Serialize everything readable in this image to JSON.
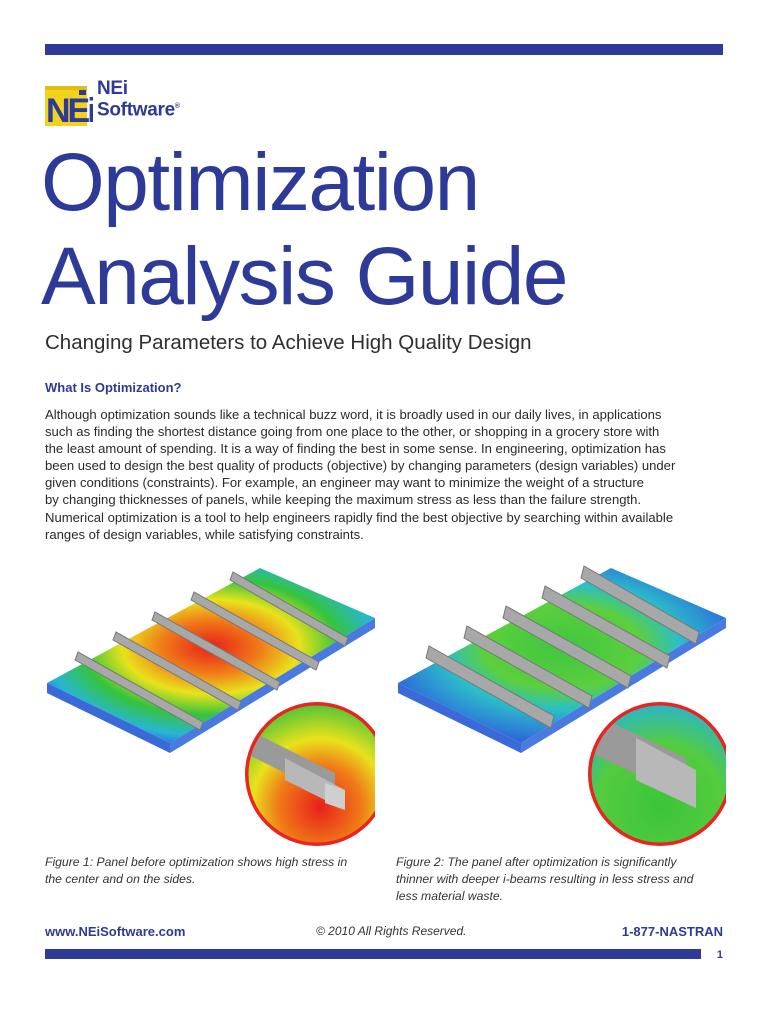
{
  "logo": {
    "mark": "NEi",
    "line1": "NEi",
    "line2": "Software",
    "reg": "®"
  },
  "title_line1": "Optimization",
  "title_line2": "Analysis Guide",
  "subtitle": "Changing Parameters to Achieve High Quality Design",
  "section_heading": "What Is Optimization?",
  "body_lines": [
    "Although optimization sounds like a technical buzz word, it is broadly used in our daily lives, in applications",
    "such as finding the shortest distance going from one place to the other, or shopping in a grocery store with",
    "the least amount of spending. It is a way of finding the best in some sense. In engineering, optimization has",
    "been used to design the best quality of products (objective) by changing parameters (design variables) under",
    "given conditions (constraints). For example, an engineer may want to minimize the weight of a structure",
    "by changing thicknesses of panels, while keeping the maximum stress as less than the failure strength.",
    "Numerical optimization is a tool to help engineers rapidly find the best objective by searching within available",
    "ranges of design variables, while satisfying constraints."
  ],
  "figure1_caption_lines": [
    "Figure 1: Panel before optimization shows high stress in",
    "the center and on the sides."
  ],
  "figure2_caption_lines": [
    "Figure 2: The panel after optimization is significantly",
    "thinner with deeper i-beams resulting in less stress and",
    "less material waste."
  ],
  "footer": {
    "url": "www.NEiSoftware.com",
    "copyright": "© 2010 All Rights Reserved.",
    "phone": "1-877-NASTRAN",
    "page_number": "1"
  },
  "colors": {
    "brand_blue": "#2e3a97",
    "logo_yellow": "#f2d21b"
  }
}
